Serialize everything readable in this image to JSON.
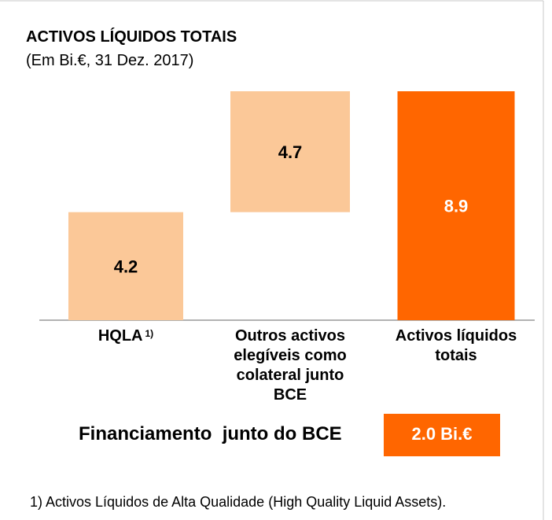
{
  "chart_data": {
    "type": "waterfall",
    "title": "ACTIVOS LÍQUIDOS TOTAIS",
    "subtitle": "(Em Bi.€, 31 Dez. 2017)",
    "categories": [
      "HQLA",
      "Outros activos elegíveis como colateral junto BCE",
      "Activos líquidos totais"
    ],
    "category_marks": [
      "1)",
      null,
      null
    ],
    "values": [
      4.2,
      4.7,
      8.9
    ],
    "totals": [
      false,
      false,
      true
    ],
    "color": "#fbc898",
    "total_color": "#ff6600",
    "annotation": {
      "text": "Financiamento  junto do BCE",
      "box": "2.0 Bi.€"
    },
    "footnote": "1) Activos Líquidos de Alta Qualidade (High Quality Liquid Assets)."
  }
}
